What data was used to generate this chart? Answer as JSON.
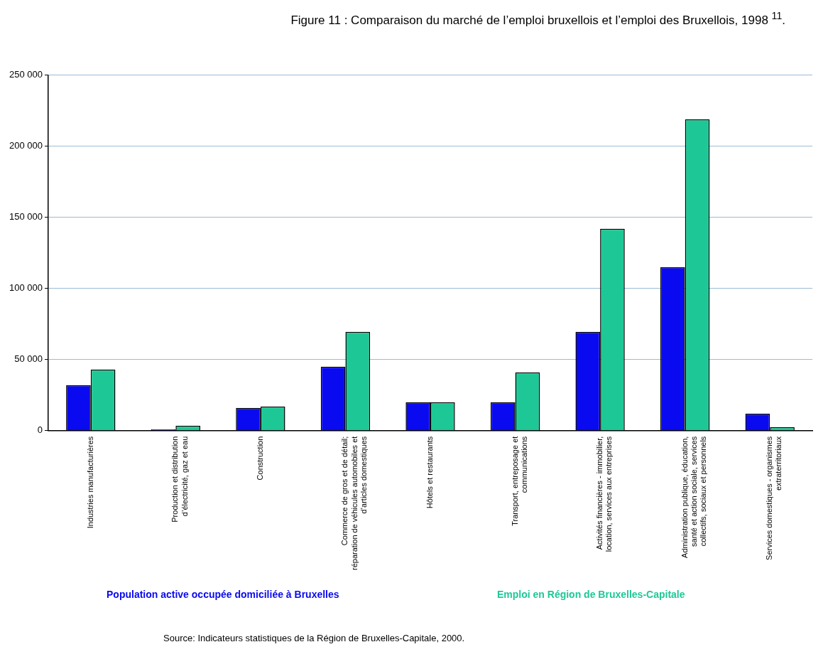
{
  "chart_data": {
    "type": "bar",
    "title": "Figure 11 : Comparaison du marché de l’emploi bruxellois et l’emploi des Bruxellois, 1998 $^{11}$.",
    "categories": [
      "Industries manufacturières",
      "Production et distribution d’électricité, gaz et eau",
      "Construction",
      "Commerce de gros et de détail; réparation de véhicules automobiles et d’articles domestiques",
      "Hôtels et restaurants",
      "Transport, entreposage et communications",
      "Activités financières - immobilier, location, services aux entreprises",
      "Administration publique, éducation, santé et action sociale, services collectifs, sociaux et personnels",
      "Services domestiques - organismes extraterritoriaux"
    ],
    "series": [
      {
        "name": "Population active occupée domiciliée à Bruxelles",
        "color": "#0a0af0",
        "values": [
          32000,
          1000,
          16000,
          45000,
          20000,
          20000,
          69500,
          115000,
          12000
        ]
      },
      {
        "name": "Emploi en Région de Bruxelles-Capitale",
        "color": "#1ec896",
        "values": [
          43000,
          3500,
          17000,
          69500,
          20000,
          41000,
          142000,
          219000,
          2500
        ]
      }
    ],
    "ylim": [
      0,
      250000
    ],
    "yticks": [
      {
        "value": 0,
        "label": "0"
      },
      {
        "value": 50000,
        "label": "50 000"
      },
      {
        "value": 100000,
        "label": "100 000"
      },
      {
        "value": 150000,
        "label": "150 000"
      },
      {
        "value": 200000,
        "label": "200 000"
      },
      {
        "value": 250000,
        "label": "250 000"
      }
    ],
    "grid": "y",
    "legend": "bottom",
    "annotations": [
      "Source: Indicateurs statistiques de la Région de Bruxelles-Capitale, 2000."
    ]
  }
}
